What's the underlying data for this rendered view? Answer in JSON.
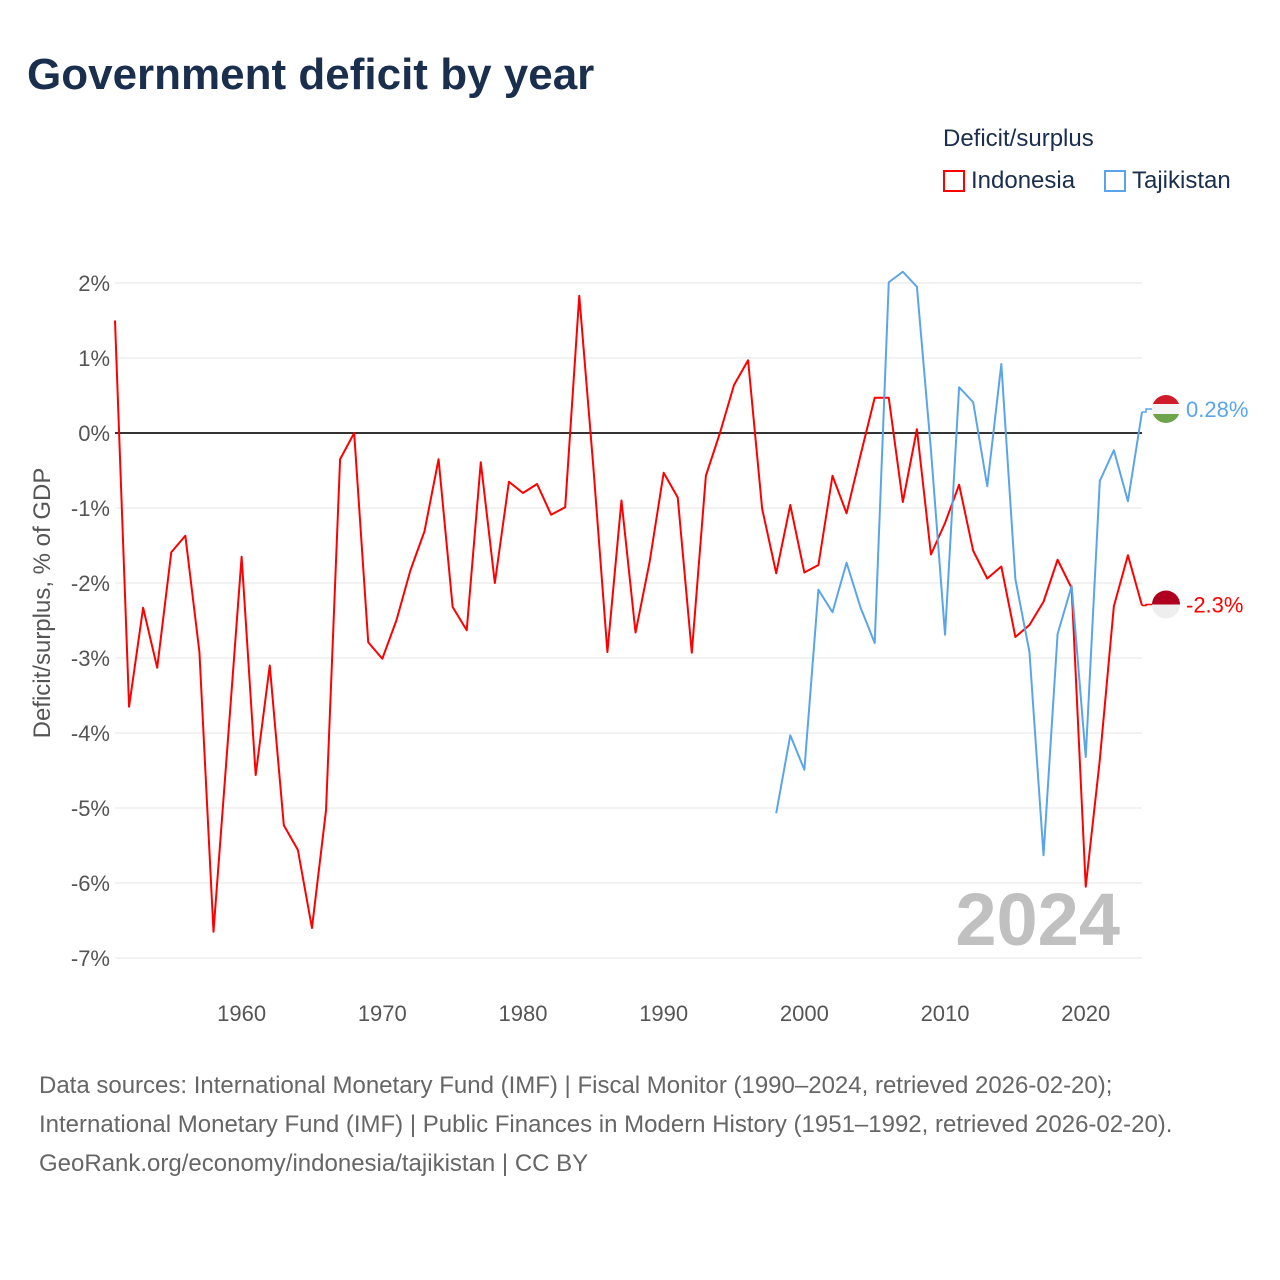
{
  "title": "Government deficit by year",
  "legend": {
    "title": "Deficit/surplus",
    "items": [
      {
        "name": "Indonesia",
        "color": "#ff0000"
      },
      {
        "name": "Tajikistan",
        "color": "#5aa5ea"
      }
    ]
  },
  "watermark_year": "2024",
  "footer": {
    "sources": "Data sources: International Monetary Fund (IMF) | Fiscal Monitor (1990–2024, retrieved 2026-02-20); International Monetary Fund (IMF) | Public Finances in Modern History (1951–1992, retrieved 2026-02-20).",
    "credit": "GeoRank.org/economy/indonesia/tajikistan | CC BY"
  },
  "chart_data": {
    "type": "line",
    "title": "Government deficit by year",
    "ylabel": "Deficit/surplus, % of GDP",
    "xlabel": "",
    "xlim": [
      1951,
      2024
    ],
    "ylim": [
      -7,
      2
    ],
    "yticks": [
      2,
      1,
      0,
      -1,
      -2,
      -3,
      -4,
      -5,
      -6,
      -7
    ],
    "ytick_labels": [
      "2%",
      "1%",
      "0%",
      "-1%",
      "-2%",
      "-3%",
      "-4%",
      "-5%",
      "-6%",
      "-7%"
    ],
    "xticks": [
      1960,
      1970,
      1980,
      1990,
      2000,
      2010,
      2020
    ],
    "xtick_labels": [
      "1960",
      "1970",
      "1980",
      "1990",
      "2000",
      "2010",
      "2020"
    ],
    "grid": true,
    "legend_position": "top-right",
    "series": [
      {
        "name": "Indonesia",
        "color": "#ff0000",
        "end_label": "-2.3%",
        "start_year": 1951,
        "values": [
          1.5,
          -3.65,
          -2.33,
          -3.13,
          -1.59,
          -1.37,
          -2.92,
          -6.65,
          -4.16,
          -1.65,
          -4.56,
          -3.1,
          -5.23,
          -5.56,
          -6.6,
          -5.03,
          -0.35,
          0.0,
          -2.79,
          -3.01,
          -2.5,
          -1.83,
          -1.31,
          -0.35,
          -2.32,
          -2.63,
          -0.39,
          -2.0,
          -0.65,
          -0.8,
          -0.68,
          -1.09,
          -0.99,
          1.83,
          -0.45,
          -2.92,
          -0.9,
          -2.66,
          -1.72,
          -0.53,
          -0.86,
          -2.93,
          -0.57,
          0.0,
          0.64,
          0.97,
          -1.01,
          -1.87,
          -0.96,
          -1.86,
          -1.76,
          -0.57,
          -1.07,
          -0.29,
          0.47,
          0.47,
          -0.92,
          0.05,
          -1.62,
          -1.2,
          -0.69,
          -1.57,
          -1.94,
          -1.78,
          -2.72,
          -2.56,
          -2.25,
          -1.69,
          -2.07,
          -6.05,
          -4.36,
          -2.31,
          -1.63,
          -2.3
        ]
      },
      {
        "name": "Tajikistan",
        "color": "#5aa5ea",
        "end_label": "0.28%",
        "start_year": 1998,
        "values": [
          -5.07,
          -4.03,
          -4.49,
          -2.09,
          -2.39,
          -1.73,
          -2.33,
          -2.8,
          2.01,
          2.15,
          1.95,
          -0.23,
          -2.69,
          0.61,
          0.41,
          -0.71,
          0.92,
          -1.95,
          -2.92,
          -5.63,
          -2.68,
          -2.04,
          -4.32,
          -0.64,
          -0.23,
          -0.91,
          0.28
        ]
      }
    ]
  }
}
